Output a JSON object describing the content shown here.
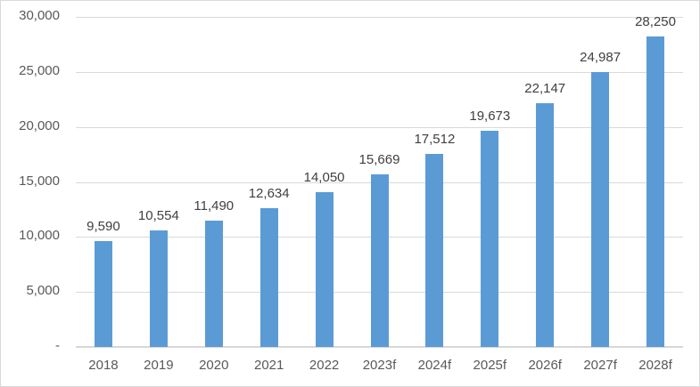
{
  "chart_data": {
    "type": "bar",
    "title": "",
    "xlabel": "",
    "ylabel": "",
    "categories": [
      "2018",
      "2019",
      "2020",
      "2021",
      "2022",
      "2023f",
      "2024f",
      "2025f",
      "2026f",
      "2027f",
      "2028f"
    ],
    "values": [
      9590,
      10554,
      11490,
      12634,
      14050,
      15669,
      17512,
      19673,
      22147,
      24987,
      28250
    ],
    "data_labels": [
      "9,590",
      "10,554",
      "11,490",
      "12,634",
      "14,050",
      "15,669",
      "17,512",
      "19,673",
      "22,147",
      "24,987",
      "28,250"
    ],
    "ylim": [
      0,
      30000
    ],
    "y_tick_interval": 5000,
    "y_tick_labels": [
      "-",
      "5,000",
      "10,000",
      "15,000",
      "20,000",
      "25,000",
      "30,000"
    ],
    "grid": true,
    "legend": "none",
    "colors": {
      "bar": "#5b9bd5",
      "gridline": "#d9d9d9",
      "axis_line": "#d6d6d6",
      "axis_text": "#595959",
      "data_label_text": "#404040",
      "border": "#d9d9d9",
      "background": "#ffffff"
    }
  }
}
